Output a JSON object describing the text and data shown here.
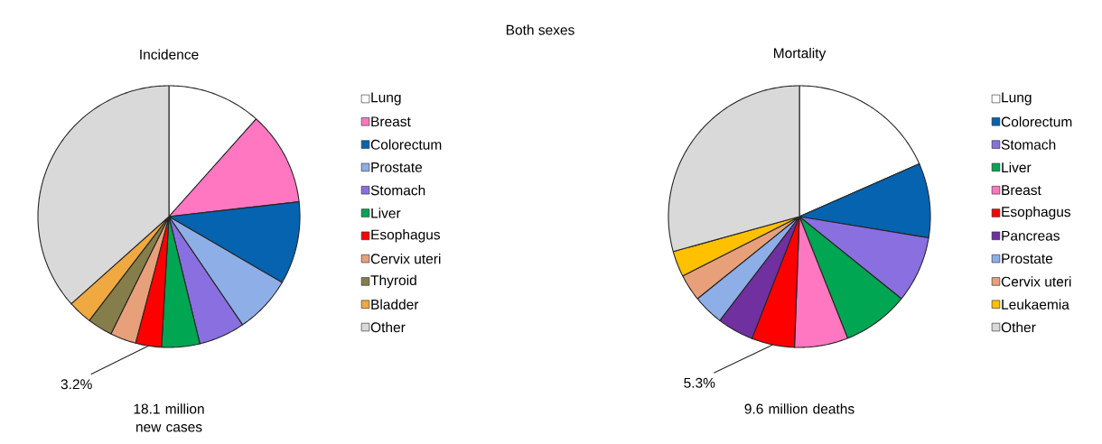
{
  "chart_data": [
    {
      "type": "pie",
      "title": "Incidence",
      "legend": "right",
      "annotations": [
        "Both sexes",
        "18.1 million new cases"
      ],
      "categories": [
        "Lung",
        "Breast",
        "Colorectum",
        "Prostate",
        "Stomach",
        "Liver",
        "Esophagus",
        "Cervix uteri",
        "Thyroid",
        "Bladder",
        "Other"
      ],
      "values": [
        11.6,
        11.6,
        10.2,
        7.1,
        5.7,
        4.7,
        3.2,
        3.2,
        3.1,
        3.0,
        36.6
      ],
      "colors": [
        "#ffffff",
        "#ff77c0",
        "#0563b0",
        "#8eaee8",
        "#8a6fe0",
        "#00a651",
        "#ff0000",
        "#e8a07a",
        "#857d4a",
        "#f0a840",
        "#d9d9d9"
      ],
      "value_labels": [
        null,
        null,
        null,
        null,
        null,
        null,
        "3.2%",
        null,
        null,
        null,
        null
      ]
    },
    {
      "type": "pie",
      "title": "Mortality",
      "legend": "right",
      "annotations": [
        "9.6 million deaths"
      ],
      "categories": [
        "Lung",
        "Colorectum",
        "Stomach",
        "Liver",
        "Breast",
        "Esophagus",
        "Pancreas",
        "Prostate",
        "Cervix uteri",
        "Leukaemia",
        "Other"
      ],
      "values": [
        18.4,
        9.2,
        8.2,
        8.2,
        6.6,
        5.3,
        4.5,
        3.8,
        3.3,
        3.2,
        29.3
      ],
      "colors": [
        "#ffffff",
        "#0563b0",
        "#8a6fe0",
        "#00a651",
        "#ff77c0",
        "#ff0000",
        "#7030a0",
        "#8eaee8",
        "#e8a07a",
        "#ffc000",
        "#d9d9d9"
      ],
      "value_labels": [
        null,
        null,
        null,
        null,
        null,
        "5.3%",
        null,
        null,
        null,
        null,
        null
      ]
    }
  ]
}
